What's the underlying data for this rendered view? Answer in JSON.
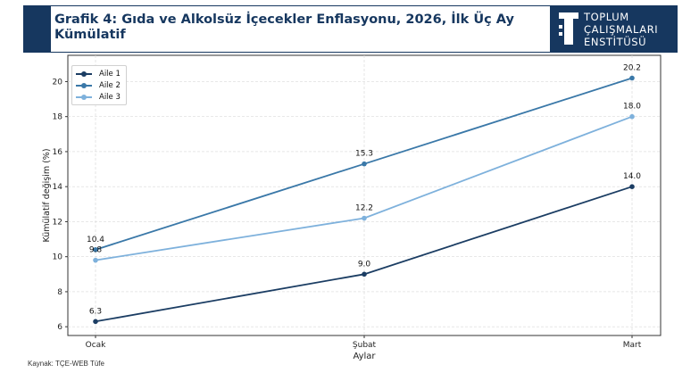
{
  "header": {
    "title": "Grafik 4: Gıda ve Alkolsüz İçecekler Enflasyonu, 2026, İlk Üç Ay Kümülatif",
    "logo_lines": [
      "TOPLUM",
      "ÇALIŞMALARI",
      "ENSTİTÜSÜ"
    ]
  },
  "source": "Kaynak: TÇE-WEB Tüfe",
  "colors": {
    "header": "#16375f",
    "aile1": "#1b3d63",
    "aile2": "#3a78a8",
    "aile3": "#7eb1dc"
  },
  "chart_data": {
    "type": "line",
    "categories": [
      "Ocak",
      "Şubat",
      "Mart"
    ],
    "series": [
      {
        "name": "Aile 1",
        "values": [
          6.3,
          9.0,
          14.0
        ],
        "labels": [
          "6.3",
          "9.0",
          "14.0"
        ]
      },
      {
        "name": "Aile 2",
        "values": [
          10.4,
          15.3,
          20.2
        ],
        "labels": [
          "10.4",
          "15.3",
          "20.2"
        ]
      },
      {
        "name": "Aile 3",
        "values": [
          9.8,
          12.2,
          18.0
        ],
        "labels": [
          "9.8",
          "12.2",
          "18.0"
        ]
      }
    ],
    "xlabel": "Aylar",
    "ylabel": "Kümülatif değişim (%)",
    "ylim": [
      5.5,
      21.5
    ],
    "yticks": [
      6,
      8,
      10,
      12,
      14,
      16,
      18,
      20
    ],
    "grid": true,
    "legend_position": "top-left"
  }
}
